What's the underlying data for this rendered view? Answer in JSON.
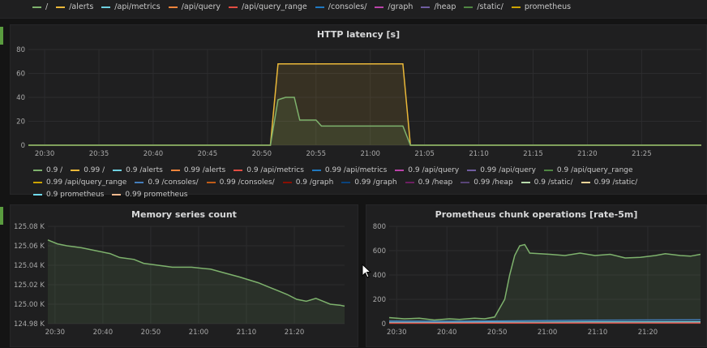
{
  "top_legend": [
    {
      "label": "/",
      "color": "#7eb26d"
    },
    {
      "label": "/alerts",
      "color": "#eab839"
    },
    {
      "label": "/api/metrics",
      "color": "#6ed0e0"
    },
    {
      "label": "/api/query",
      "color": "#ef843c"
    },
    {
      "label": "/api/query_range",
      "color": "#e24d42"
    },
    {
      "label": "/consoles/",
      "color": "#1f78c1"
    },
    {
      "label": "/graph",
      "color": "#ba43a9"
    },
    {
      "label": "/heap",
      "color": "#705da0"
    },
    {
      "label": "/static/",
      "color": "#508642"
    },
    {
      "label": "prometheus",
      "color": "#cca300"
    }
  ],
  "latency_panel": {
    "title": "HTTP latency [s]",
    "chart_data": {
      "type": "line",
      "x_ticks": [
        "20:30",
        "20:35",
        "20:40",
        "20:45",
        "20:50",
        "20:55",
        "21:00",
        "21:05",
        "21:10",
        "21:15",
        "21:20",
        "21:25"
      ],
      "y_ticks": [
        "0",
        "20",
        "40",
        "60",
        "80"
      ],
      "ylim": [
        0,
        80
      ],
      "xlim_minutes": [
        0,
        62
      ],
      "series": [
        {
          "name": "0.99 /",
          "color": "#eab839",
          "x": [
            0,
            22.3,
            23.0,
            34.5,
            35.2,
            62
          ],
          "y": [
            0,
            0,
            68,
            68,
            0,
            0
          ]
        },
        {
          "name": "0.9 /",
          "color": "#7eb26d",
          "x": [
            0,
            22.3,
            23.0,
            23.7,
            24.5,
            25.0,
            26.5,
            27.0,
            34.5,
            35.2,
            62
          ],
          "y": [
            0,
            0,
            38,
            40,
            40,
            21,
            21,
            16,
            16,
            0,
            0
          ]
        }
      ]
    },
    "legend": [
      {
        "label": "0.9 /",
        "color": "#7eb26d"
      },
      {
        "label": "0.99 /",
        "color": "#eab839"
      },
      {
        "label": "0.9 /alerts",
        "color": "#6ed0e0"
      },
      {
        "label": "0.99 /alerts",
        "color": "#ef843c"
      },
      {
        "label": "0.9 /api/metrics",
        "color": "#e24d42"
      },
      {
        "label": "0.99 /api/metrics",
        "color": "#1f78c1"
      },
      {
        "label": "0.9 /api/query",
        "color": "#ba43a9"
      },
      {
        "label": "0.99 /api/query",
        "color": "#705da0"
      },
      {
        "label": "0.9 /api/query_range",
        "color": "#508642"
      },
      {
        "label": "0.99 /api/query_range",
        "color": "#cca300"
      },
      {
        "label": "0.9 /consoles/",
        "color": "#447ebc"
      },
      {
        "label": "0.99 /consoles/",
        "color": "#c15c17"
      },
      {
        "label": "0.9 /graph",
        "color": "#890f02"
      },
      {
        "label": "0.99 /graph",
        "color": "#0a437c"
      },
      {
        "label": "0.9 /heap",
        "color": "#6d1f62"
      },
      {
        "label": "0.99 /heap",
        "color": "#584477"
      },
      {
        "label": "0.9 /static/",
        "color": "#b7dbab"
      },
      {
        "label": "0.99 /static/",
        "color": "#f4d598"
      },
      {
        "label": "0.9 prometheus",
        "color": "#70dbed"
      },
      {
        "label": "0.99 prometheus",
        "color": "#f9ba8f"
      }
    ]
  },
  "memory_panel": {
    "title": "Memory series count",
    "chart_data": {
      "type": "area",
      "x_ticks": [
        "20:30",
        "20:40",
        "20:50",
        "21:00",
        "21:10",
        "21:20"
      ],
      "y_ticks": [
        "124.98 K",
        "125.00 K",
        "125.02 K",
        "125.04 K",
        "125.06 K",
        "125.08 K"
      ],
      "ylim": [
        124980,
        125080
      ],
      "xlim_minutes": [
        0,
        62
      ],
      "series": [
        {
          "name": "",
          "color": "#7eb26d",
          "x": [
            0,
            2,
            4,
            7,
            10,
            13,
            15,
            18,
            20,
            23,
            26,
            30,
            34,
            37,
            40,
            42,
            44,
            46,
            48,
            50,
            52,
            54,
            56,
            58,
            59,
            61,
            62
          ],
          "y": [
            125066,
            125062,
            125060,
            125058,
            125055,
            125052,
            125048,
            125046,
            125042,
            125040,
            125038,
            125038,
            125036,
            125032,
            125028,
            125025,
            125022,
            125018,
            125014,
            125010,
            125005,
            125003,
            125006,
            125002,
            125000,
            124999,
            124998
          ]
        }
      ]
    }
  },
  "chunk_panel": {
    "title": "Prometheus chunk operations [rate-5m]",
    "chart_data": {
      "type": "area",
      "x_ticks": [
        "20:30",
        "20:40",
        "20:50",
        "21:00",
        "21:10",
        "21:20"
      ],
      "y_ticks": [
        "0",
        "200",
        "400",
        "600",
        "800"
      ],
      "ylim": [
        0,
        800
      ],
      "xlim_minutes": [
        0,
        62
      ],
      "series": [
        {
          "name": "",
          "color": "#7eb26d",
          "x": [
            0,
            3,
            6,
            9,
            12,
            14,
            17,
            19,
            21,
            23,
            24,
            25,
            26,
            27,
            28,
            30,
            32,
            35,
            38,
            41,
            44,
            47,
            50,
            53,
            55,
            58,
            60,
            62
          ],
          "y": [
            50,
            40,
            45,
            30,
            40,
            35,
            45,
            40,
            55,
            200,
            400,
            560,
            640,
            650,
            580,
            575,
            570,
            560,
            580,
            560,
            570,
            540,
            545,
            560,
            575,
            560,
            555,
            570
          ]
        },
        {
          "name": "",
          "color": "#447ebc",
          "x": [
            0,
            10,
            20,
            30,
            40,
            50,
            62
          ],
          "y": [
            22,
            20,
            22,
            25,
            28,
            30,
            32
          ]
        },
        {
          "name": "",
          "color": "#6ed0e0",
          "x": [
            0,
            10,
            20,
            30,
            40,
            50,
            62
          ],
          "y": [
            10,
            10,
            12,
            12,
            14,
            14,
            15
          ]
        },
        {
          "name": "",
          "color": "#e24d42",
          "x": [
            0,
            10,
            20,
            30,
            40,
            50,
            62
          ],
          "y": [
            4,
            4,
            5,
            5,
            6,
            6,
            6
          ]
        }
      ]
    }
  }
}
